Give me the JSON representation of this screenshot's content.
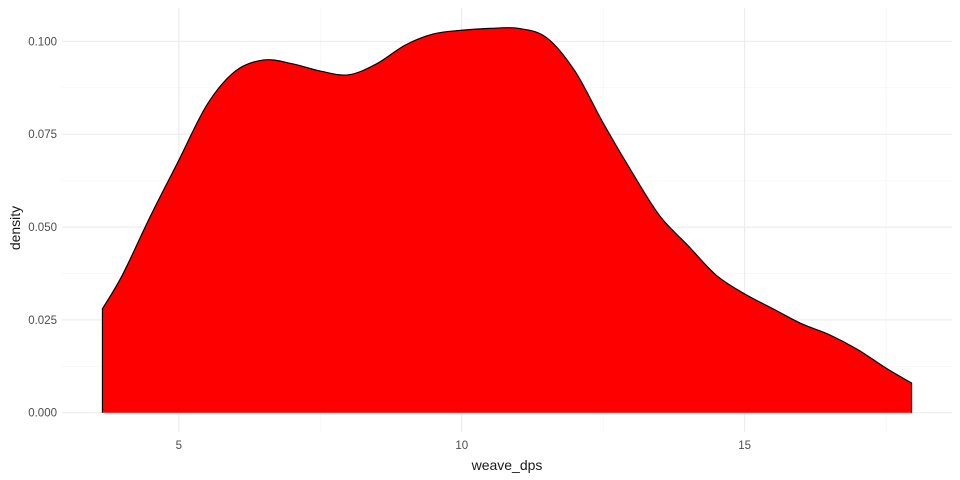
{
  "chart_data": {
    "type": "area",
    "xlabel": "weave_dps",
    "ylabel": "density",
    "xlim": [
      3.65,
      17.95
    ],
    "ylim": [
      0,
      0.1038
    ],
    "x_ticks": [
      5,
      10,
      15
    ],
    "y_ticks": [
      0.0,
      0.025,
      0.05,
      0.075,
      0.1
    ],
    "x_tick_labels": [
      "5",
      "10",
      "15"
    ],
    "y_tick_labels": [
      "0.000",
      "0.025",
      "0.050",
      "0.075",
      "0.100"
    ],
    "grid": true,
    "colors": {
      "fill": "#ff0000",
      "line": "#000000"
    },
    "series": [
      {
        "x": [
          3.65,
          4.0,
          4.5,
          5.0,
          5.5,
          6.0,
          6.5,
          7.0,
          7.5,
          8.0,
          8.5,
          9.0,
          9.5,
          10.0,
          10.5,
          11.0,
          11.5,
          12.0,
          12.5,
          13.0,
          13.5,
          14.0,
          14.5,
          15.0,
          15.5,
          16.0,
          16.5,
          17.0,
          17.5,
          17.95
        ],
        "y": [
          0.028,
          0.037,
          0.053,
          0.068,
          0.083,
          0.092,
          0.095,
          0.094,
          0.092,
          0.091,
          0.094,
          0.099,
          0.102,
          0.103,
          0.1035,
          0.1035,
          0.101,
          0.092,
          0.078,
          0.065,
          0.053,
          0.045,
          0.037,
          0.032,
          0.028,
          0.024,
          0.021,
          0.017,
          0.012,
          0.008
        ]
      }
    ]
  }
}
